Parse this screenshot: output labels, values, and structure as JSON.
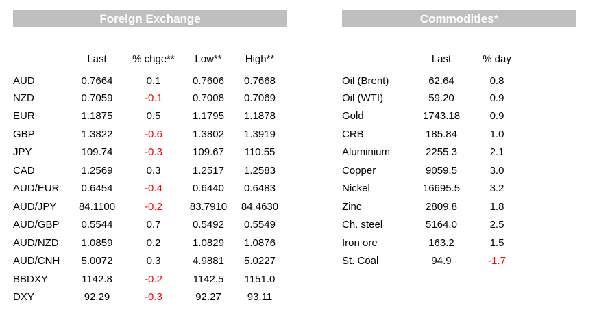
{
  "fx": {
    "title": "Foreign Exchange",
    "headers": [
      "",
      "Last",
      "% chge**",
      "Low**",
      "High**"
    ],
    "rows": [
      {
        "name": "AUD",
        "last": "0.7664",
        "chg": "0.1",
        "low": "0.7606",
        "high": "0.7668"
      },
      {
        "name": "NZD",
        "last": "0.7059",
        "chg": "-0.1",
        "low": "0.7008",
        "high": "0.7069"
      },
      {
        "name": "EUR",
        "last": "1.1875",
        "chg": "0.5",
        "low": "1.1795",
        "high": "1.1878"
      },
      {
        "name": "GBP",
        "last": "1.3822",
        "chg": "-0.6",
        "low": "1.3802",
        "high": "1.3919"
      },
      {
        "name": "JPY",
        "last": "109.74",
        "chg": "-0.3",
        "low": "109.67",
        "high": "110.55"
      },
      {
        "name": "CAD",
        "last": "1.2569",
        "chg": "0.3",
        "low": "1.2517",
        "high": "1.2583"
      },
      {
        "name": "AUD/EUR",
        "last": "0.6454",
        "chg": "-0.4",
        "low": "0.6440",
        "high": "0.6483"
      },
      {
        "name": "AUD/JPY",
        "last": "84.1100",
        "chg": "-0.2",
        "low": "83.7910",
        "high": "84.4630"
      },
      {
        "name": "AUD/GBP",
        "last": "0.5544",
        "chg": "0.7",
        "low": "0.5492",
        "high": "0.5549"
      },
      {
        "name": "AUD/NZD",
        "last": "1.0859",
        "chg": "0.2",
        "low": "1.0829",
        "high": "1.0876"
      },
      {
        "name": "AUD/CNH",
        "last": "5.0072",
        "chg": "0.3",
        "low": "4.9881",
        "high": "5.0227"
      },
      {
        "name": "BBDXY",
        "last": "1142.8",
        "chg": "-0.2",
        "low": "1142.5",
        "high": "1151.0"
      },
      {
        "name": "DXY",
        "last": "92.29",
        "chg": "-0.3",
        "low": "92.27",
        "high": "93.11"
      }
    ]
  },
  "commodities": {
    "title": "Commodities*",
    "headers": [
      "",
      "Last",
      "% day"
    ],
    "rows": [
      {
        "name": "Oil (Brent)",
        "last": "62.64",
        "day": "0.8"
      },
      {
        "name": "Oil (WTI)",
        "last": "59.20",
        "day": "0.9"
      },
      {
        "name": "Gold",
        "last": "1743.18",
        "day": "0.9"
      },
      {
        "name": "CRB",
        "last": "185.84",
        "day": "1.0"
      },
      {
        "name": "Aluminium",
        "last": "2255.3",
        "day": "2.1"
      },
      {
        "name": "Copper",
        "last": "9059.5",
        "day": "3.0"
      },
      {
        "name": "Nickel",
        "last": "16695.5",
        "day": "3.2"
      },
      {
        "name": "Zinc",
        "last": "2809.8",
        "day": "1.8"
      },
      {
        "name": "Ch. steel",
        "last": "5164.0",
        "day": "2.5"
      },
      {
        "name": "Iron ore",
        "last": "163.2",
        "day": "1.5"
      },
      {
        "name": "St. Coal",
        "last": "94.9",
        "day": "-1.7"
      }
    ]
  },
  "colors": {
    "negative": "#ff0000",
    "banner": "#bfbfbf"
  }
}
